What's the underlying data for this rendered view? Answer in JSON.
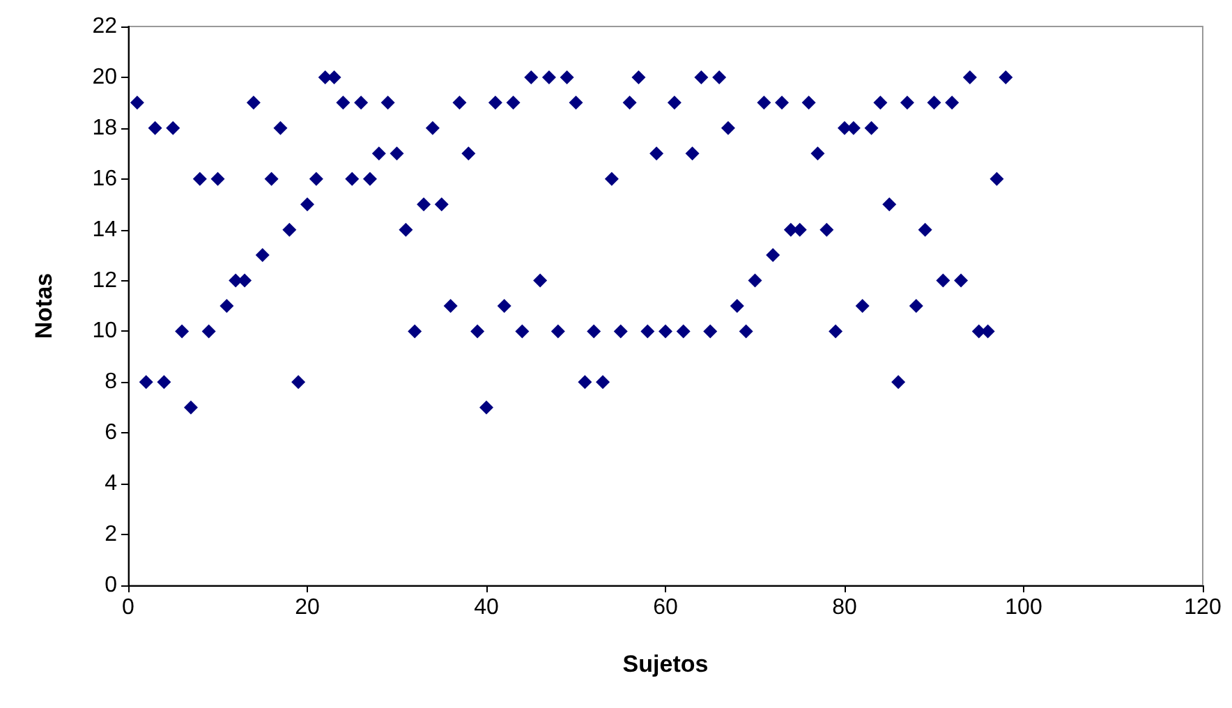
{
  "chart_data": {
    "type": "scatter",
    "xlabel": "Sujetos",
    "ylabel": "Notas",
    "x": [
      1,
      2,
      3,
      4,
      5,
      6,
      7,
      8,
      9,
      10,
      11,
      12,
      13,
      14,
      15,
      16,
      17,
      18,
      19,
      20,
      21,
      22,
      23,
      24,
      25,
      26,
      27,
      28,
      29,
      30,
      31,
      32,
      33,
      34,
      35,
      36,
      37,
      38,
      39,
      40,
      41,
      42,
      43,
      44,
      45,
      46,
      47,
      48,
      49,
      50,
      51,
      52,
      53,
      54,
      55,
      56,
      57,
      58,
      59,
      60,
      61,
      62,
      63,
      64,
      65,
      66,
      67,
      68,
      69,
      70,
      71,
      72,
      73,
      74,
      75,
      76,
      77,
      78,
      79,
      80,
      81,
      82,
      83,
      84,
      85,
      86,
      87,
      88,
      89,
      90,
      91,
      92,
      93,
      94,
      95,
      96,
      97,
      98
    ],
    "series": [
      {
        "color": "#000080",
        "values": [
          19,
          8,
          18,
          8,
          18,
          10,
          7,
          16,
          10,
          16,
          11,
          12,
          12,
          19,
          13,
          16,
          18,
          14,
          8,
          15,
          16,
          20,
          20,
          19,
          16,
          19,
          16,
          17,
          19,
          17,
          14,
          10,
          15,
          18,
          15,
          11,
          19,
          17,
          10,
          7,
          19,
          11,
          19,
          10,
          20,
          12,
          20,
          10,
          20,
          19,
          8,
          10,
          8,
          16,
          10,
          19,
          20,
          10,
          17,
          10,
          19,
          10,
          17,
          20,
          10,
          20,
          18,
          11,
          10,
          12,
          19,
          13,
          19,
          14,
          14,
          19,
          17,
          14,
          10,
          18,
          18,
          11,
          18,
          19,
          15,
          8,
          19,
          11,
          14,
          19,
          12,
          19,
          12,
          20,
          10,
          10,
          16,
          20
        ]
      }
    ],
    "xlim": [
      0,
      120
    ],
    "xticks": [
      0,
      20,
      40,
      60,
      80,
      100,
      120
    ],
    "ylim": [
      0,
      22
    ],
    "yticks": [
      0,
      2,
      4,
      6,
      8,
      10,
      12,
      14,
      16,
      18,
      20,
      22
    ],
    "marker": "diamond"
  }
}
